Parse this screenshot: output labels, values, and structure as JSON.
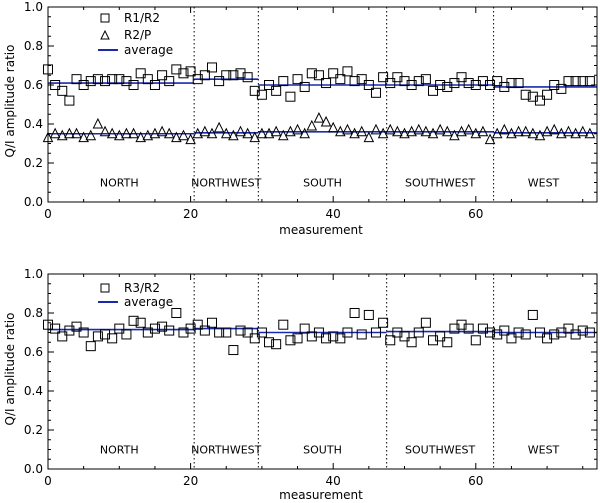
{
  "chart_data": [
    {
      "type": "scatter",
      "xlabel": "measurement",
      "ylabel": "Q/I amplitude ratio",
      "xlim": [
        0,
        77
      ],
      "ylim": [
        0,
        1
      ],
      "xticks": [
        0,
        20,
        40,
        60
      ],
      "yticks": [
        "0.0",
        "0.2",
        "0.4",
        "0.6",
        "0.8",
        "1.0"
      ],
      "dividers": [
        20.5,
        29.5,
        47.5,
        62.5
      ],
      "regions": [
        {
          "name": "NORTH",
          "x": 10
        },
        {
          "name": "NORTHWEST",
          "x": 25
        },
        {
          "name": "SOUTH",
          "x": 38.5
        },
        {
          "name": "SOUTHWEST",
          "x": 55
        },
        {
          "name": "WEST",
          "x": 69.5
        }
      ],
      "region_label_y": 0.1,
      "legend": [
        "R1/R2",
        "R2/P",
        "average"
      ],
      "series": [
        {
          "name": "R1/R2",
          "marker": "square",
          "values": [
            0.68,
            0.6,
            0.57,
            0.52,
            0.63,
            0.6,
            0.62,
            0.63,
            0.62,
            0.63,
            0.63,
            0.62,
            0.6,
            0.66,
            0.63,
            0.6,
            0.65,
            0.62,
            0.68,
            0.66,
            0.67,
            0.63,
            0.65,
            0.69,
            0.62,
            0.65,
            0.65,
            0.66,
            0.64,
            0.57,
            0.55,
            0.6,
            0.57,
            0.62,
            0.54,
            0.63,
            0.59,
            0.66,
            0.65,
            0.61,
            0.66,
            0.63,
            0.67,
            0.62,
            0.63,
            0.6,
            0.56,
            0.64,
            0.61,
            0.64,
            0.62,
            0.6,
            0.62,
            0.63,
            0.57,
            0.6,
            0.59,
            0.61,
            0.64,
            0.61,
            0.6,
            0.62,
            0.6,
            0.62,
            0.59,
            0.61,
            0.61,
            0.55,
            0.54,
            0.52,
            0.55,
            0.6,
            0.58,
            0.62,
            0.62,
            0.62,
            0.62
          ]
        },
        {
          "name": "R2/P",
          "marker": "triangle",
          "values": [
            0.33,
            0.35,
            0.34,
            0.35,
            0.35,
            0.33,
            0.34,
            0.4,
            0.36,
            0.35,
            0.34,
            0.35,
            0.35,
            0.33,
            0.34,
            0.35,
            0.36,
            0.35,
            0.33,
            0.34,
            0.32,
            0.35,
            0.36,
            0.35,
            0.38,
            0.35,
            0.34,
            0.36,
            0.35,
            0.33,
            0.35,
            0.35,
            0.36,
            0.34,
            0.36,
            0.37,
            0.35,
            0.39,
            0.43,
            0.41,
            0.38,
            0.36,
            0.37,
            0.35,
            0.36,
            0.33,
            0.37,
            0.35,
            0.37,
            0.36,
            0.35,
            0.36,
            0.37,
            0.36,
            0.35,
            0.37,
            0.36,
            0.34,
            0.36,
            0.37,
            0.35,
            0.36,
            0.32,
            0.35,
            0.37,
            0.35,
            0.36,
            0.36,
            0.35,
            0.34,
            0.36,
            0.37,
            0.35,
            0.36,
            0.35,
            0.36,
            0.35
          ]
        }
      ],
      "averages": [
        {
          "segments": [
            [
              0,
              20.5,
              0.61
            ],
            [
              20.5,
              29.5,
              0.63
            ],
            [
              29.5,
              47.5,
              0.6
            ],
            [
              47.5,
              62.5,
              0.6
            ],
            [
              62.5,
              77,
              0.59
            ]
          ]
        },
        {
          "segments": [
            [
              0,
              20.5,
              0.35
            ],
            [
              20.5,
              29.5,
              0.355
            ],
            [
              29.5,
              47.5,
              0.36
            ],
            [
              47.5,
              62.5,
              0.36
            ],
            [
              62.5,
              77,
              0.355
            ]
          ]
        }
      ]
    },
    {
      "type": "scatter",
      "xlabel": "measurement",
      "ylabel": "Q/I amplitude ratio",
      "xlim": [
        0,
        77
      ],
      "ylim": [
        0,
        1
      ],
      "xticks": [
        0,
        20,
        40,
        60
      ],
      "yticks": [
        "0.0",
        "0.2",
        "0.4",
        "0.6",
        "0.8",
        "1.0"
      ],
      "dividers": [
        20.5,
        29.5,
        47.5,
        62.5
      ],
      "regions": [
        {
          "name": "NORTH",
          "x": 10
        },
        {
          "name": "NORTHWEST",
          "x": 25
        },
        {
          "name": "SOUTH",
          "x": 38.5
        },
        {
          "name": "SOUTHWEST",
          "x": 55
        },
        {
          "name": "WEST",
          "x": 69.5
        }
      ],
      "region_label_y": 0.1,
      "legend": [
        "R3/R2",
        "average"
      ],
      "series": [
        {
          "name": "R3/R2",
          "marker": "square",
          "values": [
            0.74,
            0.72,
            0.68,
            0.71,
            0.73,
            0.7,
            0.63,
            0.68,
            0.69,
            0.67,
            0.72,
            0.69,
            0.76,
            0.75,
            0.7,
            0.72,
            0.73,
            0.71,
            0.8,
            0.7,
            0.72,
            0.74,
            0.71,
            0.75,
            0.7,
            0.7,
            0.61,
            0.71,
            0.7,
            0.67,
            0.7,
            0.65,
            0.64,
            0.74,
            0.66,
            0.67,
            0.72,
            0.68,
            0.7,
            0.67,
            0.68,
            0.67,
            0.7,
            0.8,
            0.69,
            0.79,
            0.7,
            0.75,
            0.66,
            0.7,
            0.68,
            0.65,
            0.7,
            0.75,
            0.66,
            0.68,
            0.65,
            0.72,
            0.74,
            0.72,
            0.66,
            0.72,
            0.7,
            0.69,
            0.71,
            0.67,
            0.7,
            0.69,
            0.79,
            0.7,
            0.67,
            0.69,
            0.7,
            0.72,
            0.69,
            0.71,
            0.7
          ]
        }
      ],
      "averages": [
        {
          "segments": [
            [
              0,
              20.5,
              0.715
            ],
            [
              20.5,
              29.5,
              0.72
            ],
            [
              29.5,
              47.5,
              0.7
            ],
            [
              47.5,
              62.5,
              0.705
            ],
            [
              62.5,
              77,
              0.7
            ]
          ]
        }
      ]
    }
  ]
}
